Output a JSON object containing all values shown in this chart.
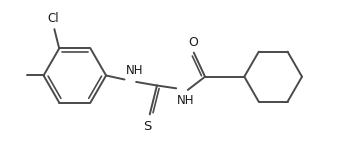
{
  "line_color": "#4a4a4a",
  "text_color": "#1a1a1a",
  "bg_color": "#ffffff",
  "line_width": 1.4,
  "font_size": 8.5,
  "figsize": [
    3.62,
    1.55
  ],
  "dpi": 100,
  "xlim": [
    0.0,
    9.0
  ],
  "ylim": [
    -1.8,
    1.6
  ]
}
